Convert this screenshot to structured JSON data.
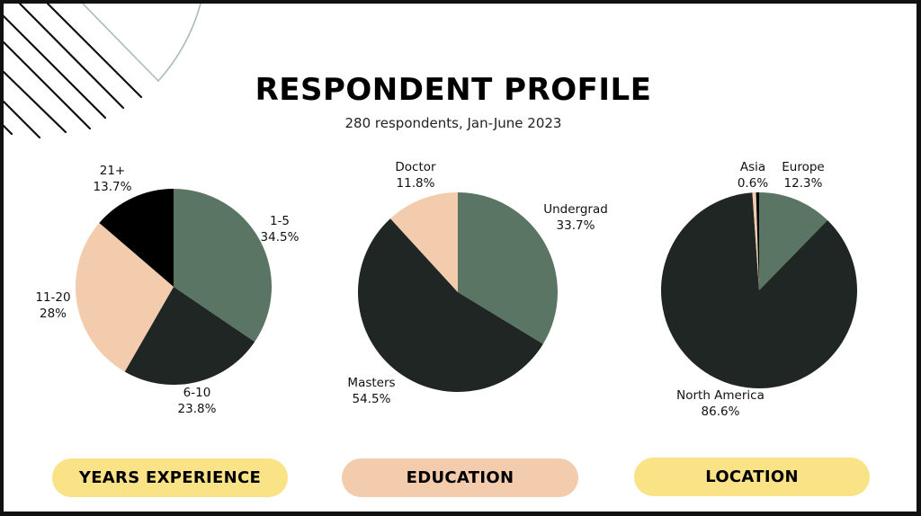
{
  "header": {
    "title": "RESPONDENT PROFILE",
    "subtitle": "280 respondents, Jan-June 2023"
  },
  "colors": {
    "green": "#5a7563",
    "dark": "#1f2624",
    "peach": "#f3cbad",
    "black": "#000000",
    "pill_yellow": "#fae286",
    "pill_peach": "#f3cbad",
    "deco_arc": "#a9babe"
  },
  "charts": {
    "experience": {
      "label": "YEARS EXPERIENCE",
      "slices": [
        {
          "name": "1-5",
          "pct_label": "34.5%"
        },
        {
          "name": "6-10",
          "pct_label": "23.8%"
        },
        {
          "name": "11-20",
          "pct_label": "28%"
        },
        {
          "name": "21+",
          "pct_label": "13.7%"
        }
      ]
    },
    "education": {
      "label": "EDUCATION",
      "slices": [
        {
          "name": "Undergrad",
          "pct_label": "33.7%"
        },
        {
          "name": "Masters",
          "pct_label": "54.5%"
        },
        {
          "name": "Doctor",
          "pct_label": "11.8%"
        }
      ]
    },
    "location": {
      "label": "LOCATION",
      "slices": [
        {
          "name": "Europe",
          "pct_label": "12.3%"
        },
        {
          "name": "North America",
          "pct_label": "86.6%"
        },
        {
          "name": "Asia",
          "pct_label": "0.6%"
        }
      ]
    }
  },
  "chart_data": [
    {
      "type": "pie",
      "title": "YEARS EXPERIENCE",
      "categories": [
        "1-5",
        "6-10",
        "11-20",
        "21+"
      ],
      "values": [
        34.5,
        23.8,
        28.0,
        13.7
      ],
      "colors": [
        "#5a7563",
        "#1f2624",
        "#f3cbad",
        "#000000"
      ],
      "start_angle": "12 o'clock, clockwise"
    },
    {
      "type": "pie",
      "title": "EDUCATION",
      "categories": [
        "Undergrad",
        "Masters",
        "Doctor"
      ],
      "values": [
        33.7,
        54.5,
        11.8
      ],
      "colors": [
        "#5a7563",
        "#1f2624",
        "#f3cbad"
      ],
      "start_angle": "12 o'clock, clockwise"
    },
    {
      "type": "pie",
      "title": "LOCATION",
      "categories": [
        "Europe",
        "North America",
        "Asia",
        ""
      ],
      "values": [
        12.3,
        86.6,
        0.6,
        0.5
      ],
      "colors": [
        "#5a7563",
        "#1f2624",
        "#f3cbad",
        "#000000"
      ],
      "start_angle": "12 o'clock, clockwise",
      "note": "final unlabeled black sliver is the remainder"
    }
  ]
}
